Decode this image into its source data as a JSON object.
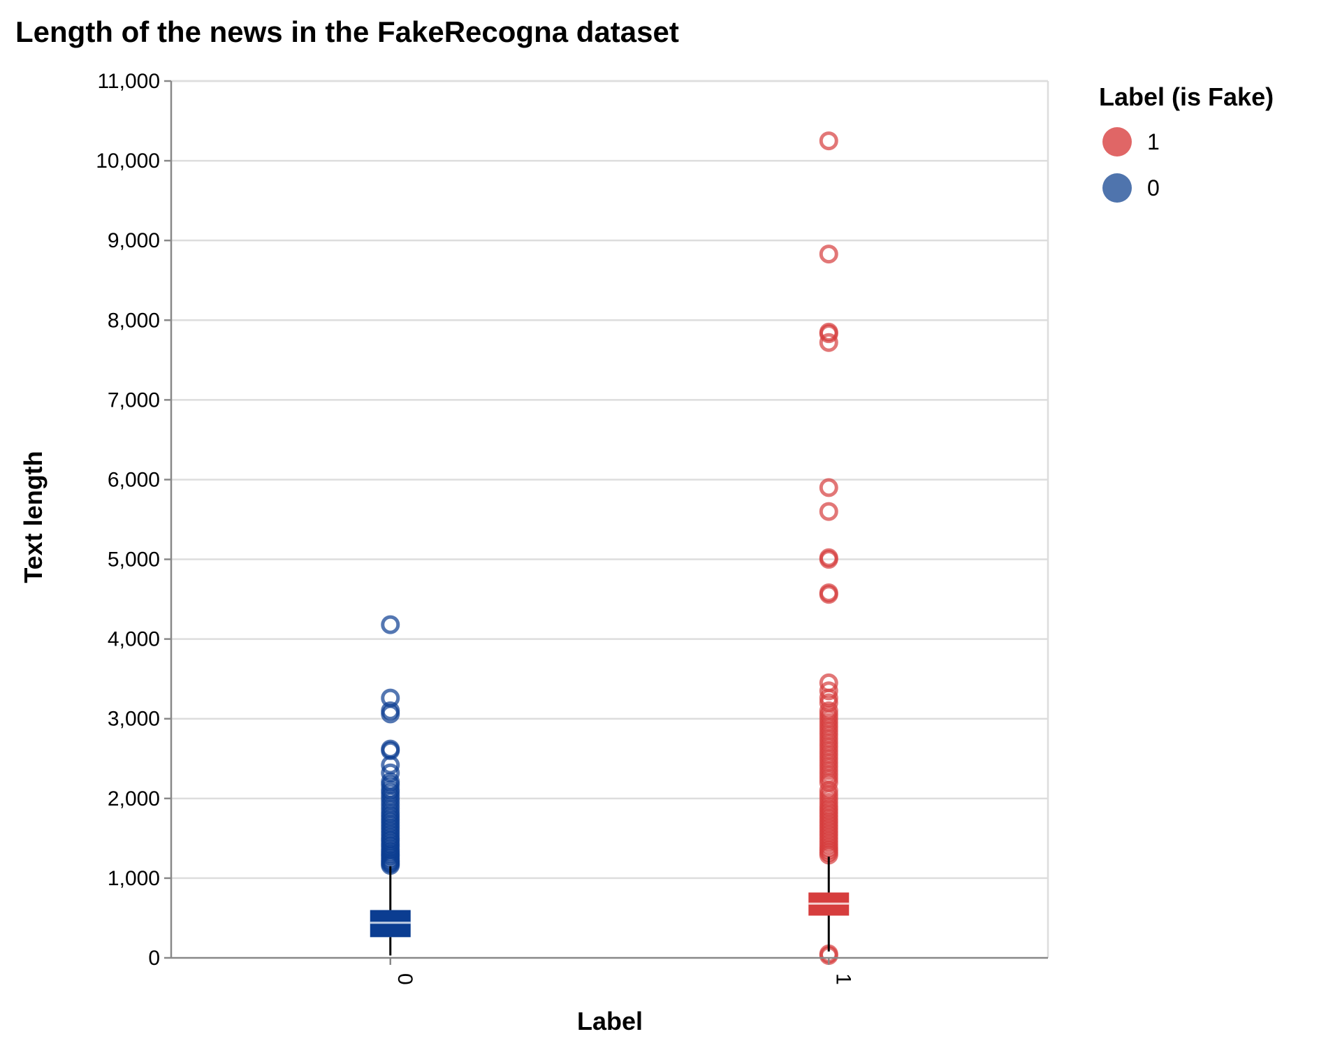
{
  "chart_data": {
    "type": "boxplot",
    "title": "Length of the news in the FakeRecogna dataset",
    "xlabel": "Label",
    "ylabel": "Text length",
    "ylim": [
      0,
      11000
    ],
    "y_ticks": [
      0,
      1000,
      2000,
      3000,
      4000,
      5000,
      6000,
      7000,
      8000,
      9000,
      10000,
      11000
    ],
    "grid": true,
    "legend": {
      "title": "Label (is Fake)",
      "placement": "top-right",
      "entries": [
        {
          "label": "1",
          "color": "#e06666"
        },
        {
          "label": "0",
          "color": "#4f74ad"
        }
      ]
    },
    "categories": [
      "0",
      "1"
    ],
    "series": [
      {
        "category": "0",
        "color": "#0b3d91",
        "outlier_color": "#0b3d91",
        "min": 30,
        "q1": 260,
        "median": 440,
        "q3": 600,
        "max": 1150,
        "outliers": [
          1160,
          1180,
          1200,
          1220,
          1250,
          1280,
          1300,
          1330,
          1360,
          1400,
          1430,
          1470,
          1500,
          1540,
          1580,
          1620,
          1660,
          1700,
          1740,
          1780,
          1820,
          1870,
          1920,
          1970,
          2020,
          2070,
          2110,
          2170,
          2210,
          2320,
          2420,
          2600,
          2620,
          3060,
          3100,
          3260,
          4180
        ]
      },
      {
        "category": "1",
        "color": "#d63d3d",
        "outlier_color": "#d63d3d",
        "min": 80,
        "q1": 530,
        "median": 680,
        "q3": 820,
        "max": 1270,
        "outliers": [
          30,
          50,
          1290,
          1320,
          1350,
          1380,
          1420,
          1460,
          1500,
          1540,
          1580,
          1620,
          1660,
          1700,
          1740,
          1780,
          1820,
          1860,
          1900,
          1950,
          2000,
          2050,
          2100,
          2200,
          2250,
          2300,
          2350,
          2400,
          2450,
          2500,
          2550,
          2600,
          2650,
          2700,
          2750,
          2800,
          2850,
          2900,
          2950,
          3000,
          3050,
          3100,
          3200,
          3260,
          3350,
          3450,
          4560,
          4580,
          5000,
          5020,
          5600,
          5900,
          7720,
          7830,
          7850,
          8830,
          10250
        ]
      }
    ]
  }
}
